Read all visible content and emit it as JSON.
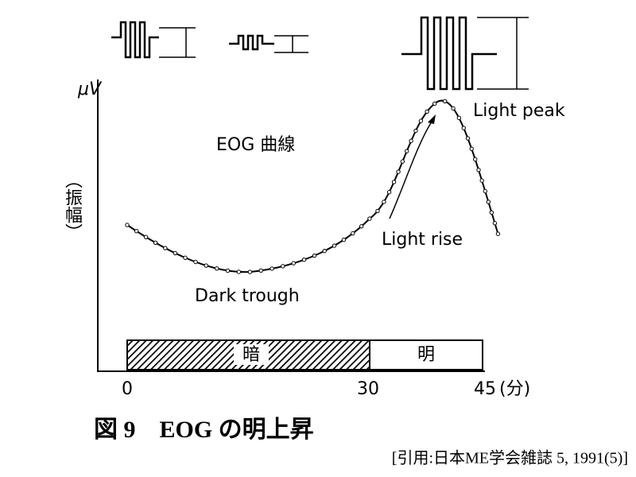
{
  "figure": {
    "y_axis_unit": "μV",
    "y_axis_label": "（振幅）",
    "curve_label": "EOG 曲線",
    "annotations": {
      "peak": "Light peak",
      "rise": "Light rise",
      "trough": "Dark trough"
    },
    "bar": {
      "dark": "暗",
      "light": "明"
    },
    "x_ticks": [
      "0",
      "30",
      "45"
    ],
    "x_unit": "(分)",
    "caption": "図 9　EOG の明上昇",
    "citation": "[引用:日本ME学会雑誌 5, 1991(5)]"
  }
}
